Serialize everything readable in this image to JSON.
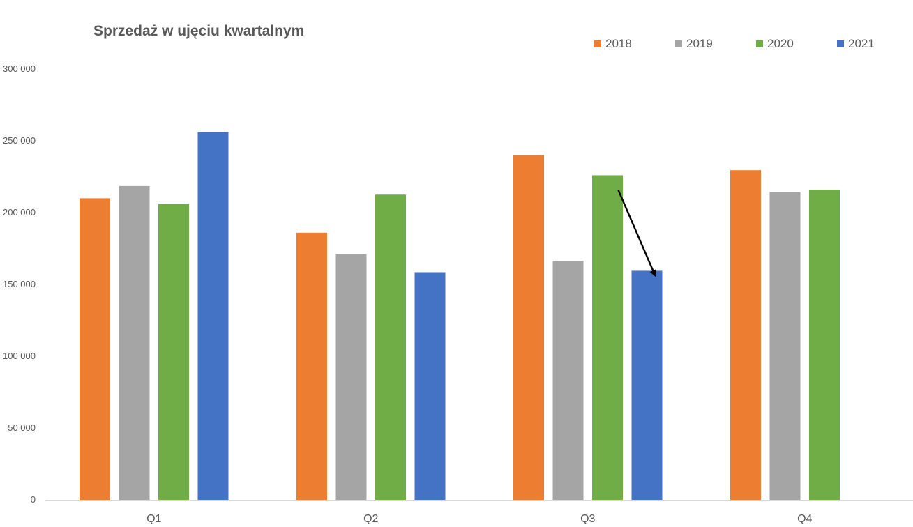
{
  "chart_data": {
    "type": "bar",
    "title": "Sprzedaż w ujęciu kwartalnym",
    "categories": [
      "Q1",
      "Q2",
      "Q3",
      "Q4"
    ],
    "series": [
      {
        "name": "2018",
        "color": "#ED7D31",
        "values": [
          210000,
          186000,
          240000,
          229500
        ]
      },
      {
        "name": "2019",
        "color": "#A5A5A5",
        "values": [
          218500,
          171000,
          166500,
          214500
        ]
      },
      {
        "name": "2020",
        "color": "#70AD47",
        "values": [
          206000,
          212500,
          226000,
          216000
        ]
      },
      {
        "name": "2021",
        "color": "#4472C4",
        "values": [
          256000,
          158500,
          159500,
          null
        ]
      }
    ],
    "ylim": [
      0,
      300000
    ],
    "yticks": [
      0,
      50000,
      100000,
      150000,
      200000,
      250000,
      300000
    ],
    "ytick_labels": [
      "0",
      "50 000",
      "100 000",
      "150 000",
      "200 000",
      "250 000",
      "300 000"
    ],
    "xlabel": "",
    "ylabel": "",
    "grid": false,
    "legend_position": "top-right",
    "annotations": [
      {
        "type": "arrow",
        "category": "Q3",
        "from_series": "2020",
        "to_series": "2021"
      }
    ]
  }
}
